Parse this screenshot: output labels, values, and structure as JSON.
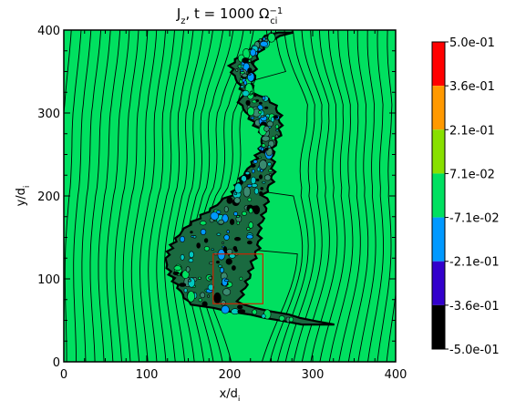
{
  "chart_data": {
    "type": "heatmap",
    "title": {
      "var": "J",
      "var_sub": "z",
      "mid": ", t = 1000 ",
      "omega": "Ω",
      "omega_sup": "−1",
      "omega_sub": "ci"
    },
    "xlabel": {
      "base": "x/d",
      "sub": "i"
    },
    "ylabel": {
      "base": "y/d",
      "sub": "i"
    },
    "xlim": [
      0,
      400
    ],
    "ylim": [
      0,
      400
    ],
    "xticks": [
      0,
      100,
      200,
      300,
      400
    ],
    "yticks": [
      0,
      100,
      200,
      300,
      400
    ],
    "background_level_color": "#00e060",
    "contour_color": "#000000",
    "highlight_box": {
      "x": [
        180,
        240
      ],
      "y": [
        70,
        130
      ],
      "color": "#cc2200"
    },
    "colorbar": {
      "levels": [
        "5.0e-01",
        "3.6e-01",
        "2.1e-01",
        "7.1e-02",
        "-7.1e-02",
        "-2.1e-01",
        "-3.6e-01",
        "-5.0e-01"
      ],
      "colors": [
        "#ff0000",
        "#ff9900",
        "#88e000",
        "#00e060",
        "#0099ff",
        "#3300cc",
        "#000000"
      ]
    }
  }
}
